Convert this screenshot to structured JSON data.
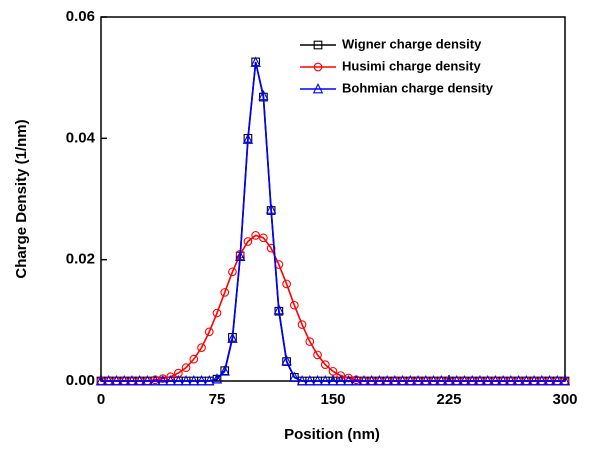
{
  "chart_data": {
    "type": "line",
    "xlabel": "Position (nm)",
    "ylabel": "Charge Density (1/nm)",
    "xlim": [
      0,
      300
    ],
    "xticks": [
      0,
      75,
      150,
      225,
      300
    ],
    "ylim": [
      0,
      0.06
    ],
    "yticks": [
      {
        "value": 0,
        "label": "0.00"
      },
      0.02,
      0.04,
      0.06
    ],
    "legend": "top-right",
    "x": [
      0,
      5,
      10,
      15,
      20,
      25,
      30,
      35,
      40,
      45,
      50,
      55,
      60,
      65,
      70,
      75,
      80,
      85,
      90,
      95,
      100,
      105,
      110,
      115,
      120,
      125,
      130,
      135,
      140,
      145,
      150,
      155,
      160,
      165,
      170,
      175,
      180,
      185,
      190,
      195,
      200,
      205,
      210,
      215,
      220,
      225,
      230,
      235,
      240,
      245,
      250,
      255,
      260,
      265,
      270,
      275,
      280,
      285,
      290,
      295,
      300
    ],
    "series": [
      {
        "name": "Wigner charge density",
        "color": "#000000",
        "marker": "square",
        "values": [
          0,
          0,
          0,
          0,
          0,
          0,
          0,
          0,
          0,
          0,
          0,
          0,
          0,
          0,
          0,
          0.0003,
          0.0017,
          0.0072,
          0.0206,
          0.04,
          0.0526,
          0.0468,
          0.0281,
          0.0115,
          0.0032,
          0.0006,
          0,
          0,
          0,
          0,
          0,
          0,
          0,
          0,
          0,
          0,
          0,
          0,
          0,
          0,
          0,
          0,
          0,
          0,
          0,
          0,
          0,
          0,
          0,
          0,
          0,
          0,
          0,
          0,
          0,
          0,
          0,
          0,
          0,
          0,
          0
        ]
      },
      {
        "name": "Husimi charge density",
        "color": "#ff0000",
        "marker": "circle",
        "values": [
          0,
          0,
          0,
          0,
          0,
          0,
          0,
          0.0002,
          0.0004,
          0.0007,
          0.0013,
          0.0022,
          0.0036,
          0.0055,
          0.0081,
          0.0112,
          0.0146,
          0.018,
          0.0209,
          0.023,
          0.024,
          0.0236,
          0.0219,
          0.0192,
          0.016,
          0.0125,
          0.0093,
          0.0065,
          0.0043,
          0.0027,
          0.0016,
          0.0009,
          0.0005,
          0.0002,
          0,
          0,
          0,
          0,
          0,
          0,
          0,
          0,
          0,
          0,
          0,
          0,
          0,
          0,
          0,
          0,
          0,
          0,
          0,
          0,
          0,
          0,
          0,
          0,
          0,
          0,
          0
        ]
      },
      {
        "name": "Bohmian charge density",
        "color": "#0000ff",
        "marker": "triangle",
        "values": [
          0,
          0,
          0,
          0,
          0,
          0,
          0,
          0,
          0,
          0,
          0,
          0,
          0,
          0,
          0,
          0.0003,
          0.0016,
          0.007,
          0.0205,
          0.0398,
          0.0525,
          0.047,
          0.0283,
          0.0117,
          0.0033,
          0.0006,
          0,
          0,
          0,
          0,
          0,
          0,
          0,
          0,
          0,
          0,
          0,
          0,
          0,
          0,
          0,
          0,
          0,
          0,
          0,
          0,
          0,
          0,
          0,
          0,
          0,
          0,
          0,
          0,
          0,
          0,
          0,
          0,
          0,
          0,
          0
        ]
      }
    ]
  }
}
